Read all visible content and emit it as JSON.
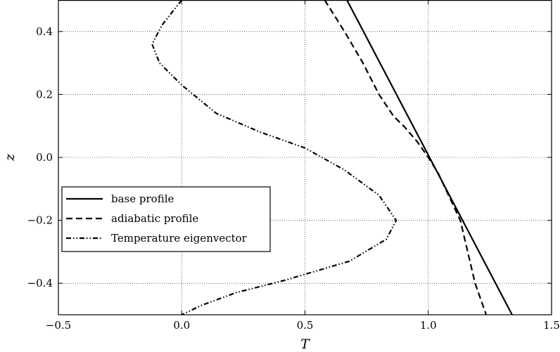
{
  "chart_data": {
    "type": "line",
    "xlabel": "T",
    "ylabel": "z",
    "xlim": [
      -0.5,
      1.5
    ],
    "ylim": [
      -0.5,
      0.5
    ],
    "x_ticks": [
      -0.5,
      0.0,
      0.5,
      1.0,
      1.5
    ],
    "y_ticks": [
      -0.4,
      -0.2,
      0.0,
      0.2,
      0.4
    ],
    "x_tick_labels": [
      "−0.5",
      "0.0",
      "0.5",
      "1.0",
      "1.5"
    ],
    "y_tick_labels": [
      "−0.4",
      "−0.2",
      "0.0",
      "0.2",
      "0.4"
    ],
    "grid": true,
    "legend_position": "lower-left",
    "series": [
      {
        "name": "base profile",
        "style": "solid",
        "color": "#000000",
        "points": [
          [
            0.67,
            0.5
          ],
          [
            1.34,
            -0.5
          ]
        ]
      },
      {
        "name": "adiabatic profile",
        "style": "dashed",
        "color": "#000000",
        "points": [
          [
            0.58,
            0.5
          ],
          [
            0.66,
            0.4
          ],
          [
            0.735,
            0.3
          ],
          [
            0.8,
            0.2
          ],
          [
            0.86,
            0.13
          ],
          [
            0.9,
            0.1
          ],
          [
            0.955,
            0.05
          ],
          [
            1.0,
            0.0
          ],
          [
            1.04,
            -0.05
          ],
          [
            1.07,
            -0.1
          ],
          [
            1.1,
            -0.15
          ],
          [
            1.13,
            -0.2
          ],
          [
            1.16,
            -0.3
          ],
          [
            1.19,
            -0.4
          ],
          [
            1.235,
            -0.5
          ]
        ]
      },
      {
        "name": "Temperature eigenvector",
        "style": "dashdotdot",
        "color": "#000000",
        "points": [
          [
            0.0,
            0.5
          ],
          [
            -0.08,
            0.42
          ],
          [
            -0.12,
            0.36
          ],
          [
            -0.09,
            0.3
          ],
          [
            0.0,
            0.23
          ],
          [
            0.14,
            0.14
          ],
          [
            0.32,
            0.08
          ],
          [
            0.5,
            0.03
          ],
          [
            0.66,
            -0.04
          ],
          [
            0.8,
            -0.12
          ],
          [
            0.87,
            -0.2
          ],
          [
            0.83,
            -0.26
          ],
          [
            0.68,
            -0.33
          ],
          [
            0.42,
            -0.39
          ],
          [
            0.22,
            -0.43
          ],
          [
            0.08,
            -0.47
          ],
          [
            0.0,
            -0.5
          ]
        ]
      }
    ]
  }
}
